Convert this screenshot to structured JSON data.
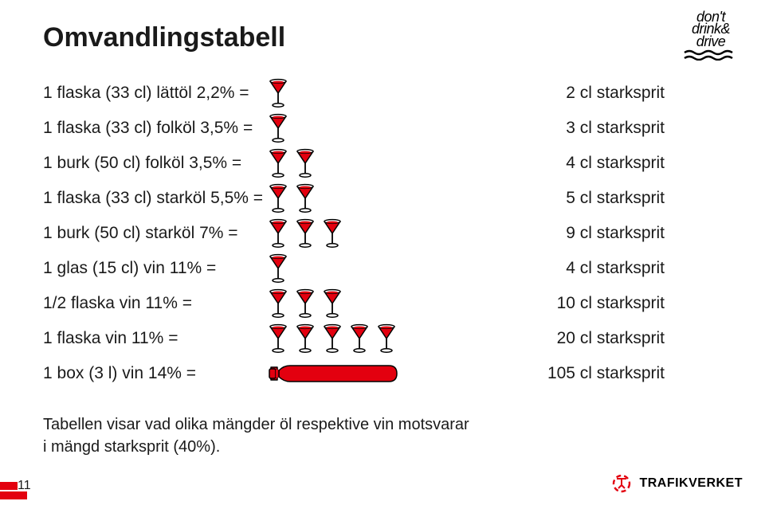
{
  "title": "Omvandlingstabell",
  "rows": [
    {
      "left": "1 flaska (33 cl) lättöl 2,2% =",
      "count": 1,
      "icon": "glass",
      "right": "2 cl starksprit"
    },
    {
      "left": "1 flaska (33 cl) folköl 3,5% =",
      "count": 1,
      "icon": "glass",
      "right": "3 cl starksprit"
    },
    {
      "left": "1 burk (50 cl) folköl 3,5% =",
      "count": 2,
      "icon": "glass",
      "right": "4 cl starksprit"
    },
    {
      "left": "1 flaska (33 cl) starköl 5,5% =",
      "count": 2,
      "icon": "glass",
      "right": "5 cl starksprit"
    },
    {
      "left": "1 burk (50 cl) starköl 7% =",
      "count": 3,
      "icon": "glass",
      "right": "9 cl starksprit"
    },
    {
      "left": "1 glas (15 cl) vin 11% =",
      "count": 1,
      "icon": "glass",
      "right": "4 cl starksprit"
    },
    {
      "left": "1/2 flaska vin 11% =",
      "count": 3,
      "icon": "glass",
      "right": "10 cl starksprit"
    },
    {
      "left": "1 flaska vin 11% =",
      "count": 5,
      "icon": "glass",
      "right": "20 cl starksprit"
    },
    {
      "left": "1  box (3 l) vin 14% =",
      "count": 1,
      "icon": "bottle",
      "right": "105 cl starksprit"
    }
  ],
  "caption_line1": "Tabellen visar vad olika mängder öl respektive vin motsvarar",
  "caption_line2": "i mängd starksprit (40%).",
  "page_number": "11",
  "icon_color": "#e3000f",
  "icon_outline": "#000000",
  "logo_ddd": {
    "l1": "don't",
    "l2": "drink&",
    "l3": "drive"
  },
  "logo_tv": "TRAFIKVERKET"
}
